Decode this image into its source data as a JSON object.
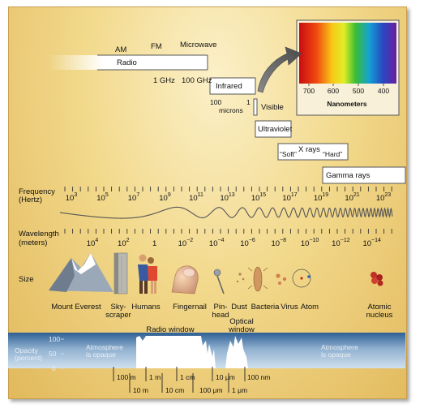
{
  "bands": {
    "am": "AM",
    "fm": "FM",
    "microwave": "Microwave",
    "radio": "Radio",
    "ghz1": "1 GHz",
    "ghz100": "100 GHz",
    "infrared": "Infrared",
    "microns100": "100",
    "microns_label": "microns",
    "micron1": "1",
    "visible": "Visible",
    "ultraviolet": "Ultraviolet",
    "soft": "“Soft”",
    "xrays": "X rays",
    "hard": "“Hard”",
    "gamma": "Gamma rays"
  },
  "spectrum_inset": {
    "ticks": [
      "700",
      "600",
      "500",
      "400"
    ],
    "label": "Nanometers",
    "colors": [
      "#d01010",
      "#f06010",
      "#f8c010",
      "#e8f020",
      "#40c030",
      "#10a0d0",
      "#2040c0",
      "#6020a0"
    ]
  },
  "frequency": {
    "label1": "Frequency",
    "label2": "(Hertz)",
    "exponents": [
      "3",
      "5",
      "7",
      "9",
      "11",
      "13",
      "15",
      "17",
      "19",
      "21",
      "23"
    ]
  },
  "wavelength": {
    "label1": "Wavelength",
    "label2": "(meters)",
    "values": [
      {
        "base": "10",
        "exp": "4"
      },
      {
        "base": "10",
        "exp": "2"
      },
      {
        "base": "1",
        "exp": ""
      },
      {
        "base": "10",
        "exp": "−2"
      },
      {
        "base": "10",
        "exp": "−4"
      },
      {
        "base": "10",
        "exp": "−6"
      },
      {
        "base": "10",
        "exp": "−8"
      },
      {
        "base": "10",
        "exp": "−10"
      },
      {
        "base": "10",
        "exp": "−12"
      },
      {
        "base": "10",
        "exp": "−14"
      }
    ]
  },
  "size": {
    "label": "Size",
    "items": [
      "Mount Everest",
      "Sky-\nscraper",
      "Humans",
      "Fingernail",
      "Pin-\nhead",
      "Dust",
      "Bacteria",
      "Virus",
      "Atom",
      "Atomic\nnucleus"
    ]
  },
  "opacity": {
    "label1": "Opacity",
    "label2": "(percent)",
    "v100": "100",
    "v50": "50",
    "v0": "0",
    "radio_window": "Radio window",
    "optical_window1": "Optical",
    "optical_window2": "window",
    "atm_left1": "Atmosphere",
    "atm_left2": "is opaque",
    "atm_right1": "Atmosphere",
    "atm_right2": "is opaque"
  },
  "scale": {
    "row1": [
      "100 m",
      "1 m",
      "1 cm",
      "10 μm",
      "100 nm"
    ],
    "row2": [
      "10 m",
      "10 cm",
      "100 μm",
      "1 μm"
    ]
  }
}
